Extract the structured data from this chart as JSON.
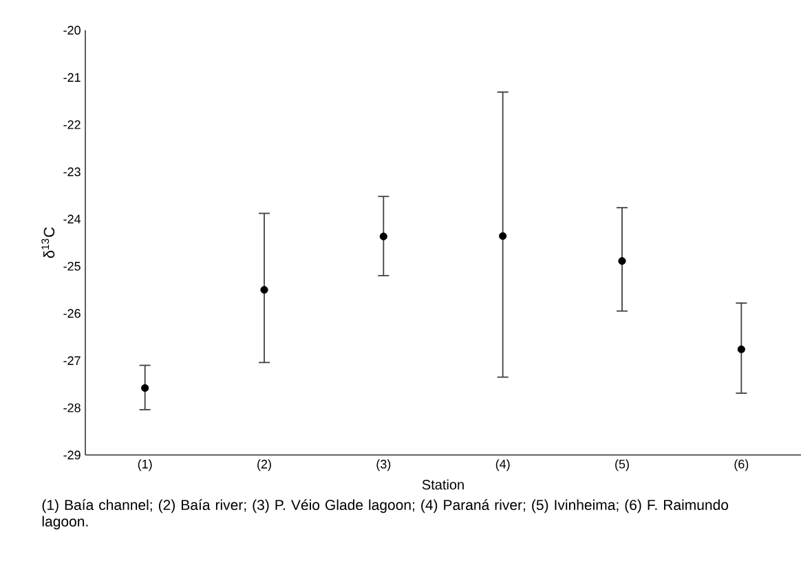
{
  "chart_data": {
    "type": "scatter",
    "xlabel": "Station",
    "ylabel": "δ$^{13}$C",
    "categories": [
      "(1)",
      "(2)",
      "(3)",
      "(4)",
      "(5)",
      "(6)"
    ],
    "values": [
      -27.58,
      -25.5,
      -24.37,
      -24.36,
      -24.89,
      -26.76
    ],
    "errors": [
      [
        -28.04,
        -27.1
      ],
      [
        -27.04,
        -23.88
      ],
      [
        -25.2,
        -23.52
      ],
      [
        -27.35,
        -21.31
      ],
      [
        -25.95,
        -23.76
      ],
      [
        -27.69,
        -25.78
      ]
    ],
    "color": "#000000",
    "marker": "circle",
    "ylim": [
      -29,
      -20
    ],
    "yticks": [
      -29,
      -28,
      -27,
      -26,
      -25,
      -24,
      -23,
      -22,
      -21,
      -20
    ],
    "grid": false,
    "annotations": [
      "(1) Baía channel; (2) Baía river; (3) P. Véio Glade lagoon; (4) Paraná river; (5) Ivinheima; (6) F. Raimundo lagoon."
    ]
  }
}
